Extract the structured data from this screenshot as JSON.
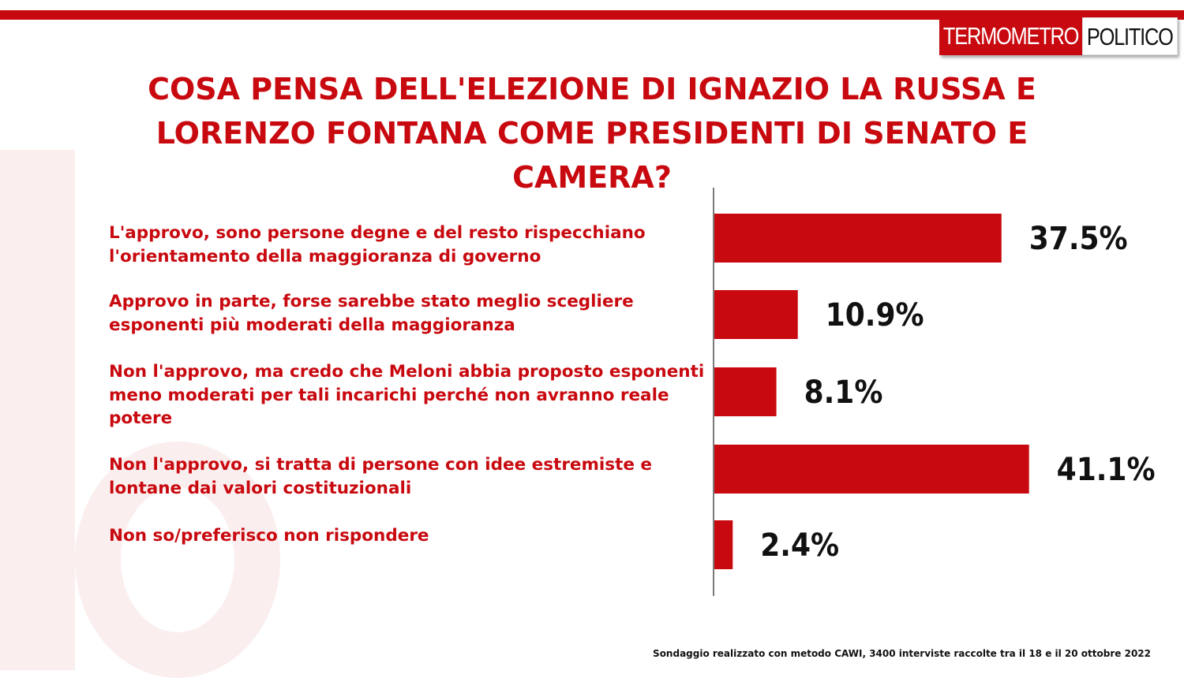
{
  "brand": {
    "logo_part1": "TERMOMETRO",
    "logo_part2": "POLITICO",
    "accent_color": "#c8090f"
  },
  "chart_data": {
    "type": "bar",
    "orientation": "horizontal",
    "title": "COSA PENSA DELL'ELEZIONE DI IGNAZIO LA RUSSA E LORENZO FONTANA COME PRESIDENTI DI SENATO E CAMERA?",
    "categories": [
      "L'approvo, sono persone degne e del resto rispecchiano l'orientamento della maggioranza di governo",
      "Approvo in parte, forse sarebbe stato meglio scegliere esponenti più moderati della maggioranza",
      "Non l'approvo, ma credo che Meloni abbia proposto esponenti meno moderati per tali incarichi perché non avranno reale potere",
      "Non l'approvo, si tratta di persone con idee estremiste e lontane dai valori costituzionali",
      "Non so/preferisco non rispondere"
    ],
    "values": [
      37.5,
      10.9,
      8.1,
      41.1,
      2.4
    ],
    "value_labels": [
      "37.5%",
      "10.9%",
      "8.1%",
      "41.1%",
      "2.4%"
    ],
    "bar_color": "#c8090f",
    "xlim": [
      0,
      100
    ]
  },
  "footnote": "Sondaggio realizzato con metodo CAWI, 3400 interviste raccolte tra il 18 e il 20 ottobre 2022"
}
